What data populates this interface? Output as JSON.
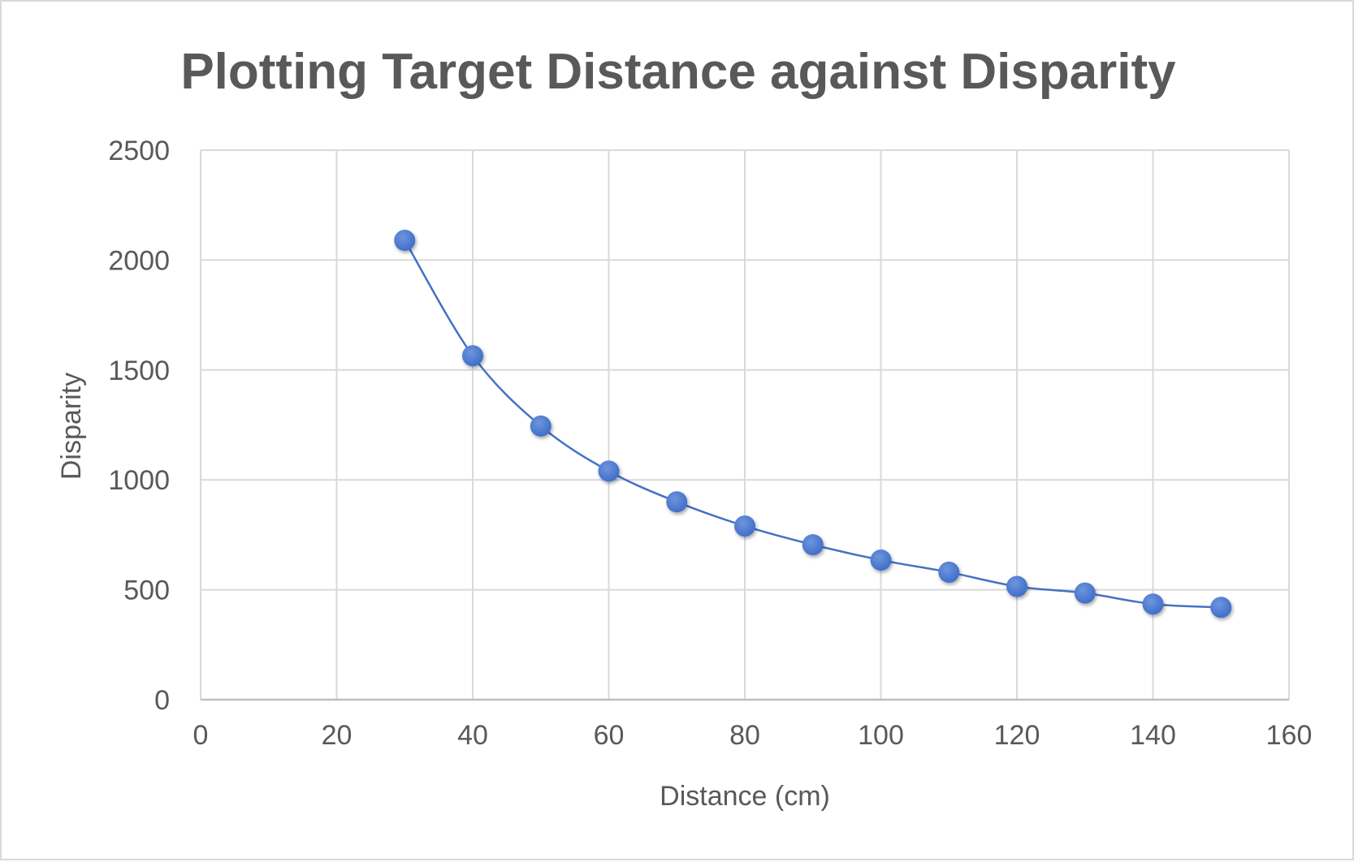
{
  "chart_data": {
    "type": "scatter",
    "title": "Plotting Target Distance against Disparity",
    "xlabel": "Distance (cm)",
    "ylabel": "Disparity",
    "xlim": [
      0,
      160
    ],
    "ylim": [
      0,
      2500
    ],
    "xticks": [
      "0",
      "20",
      "40",
      "60",
      "80",
      "100",
      "120",
      "140",
      "160"
    ],
    "yticks": [
      "0",
      "500",
      "1000",
      "1500",
      "2000",
      "2500"
    ],
    "grid": true,
    "smooth_line": true,
    "colors": {
      "series": "#4472C4",
      "marker": "#3F6FCB",
      "grid": "#d9d9d9",
      "text": "#595959"
    },
    "series": [
      {
        "x": [
          30,
          40,
          50,
          60,
          70,
          80,
          90,
          100,
          110,
          120,
          130,
          140,
          150
        ],
        "y": [
          2090,
          1565,
          1245,
          1040,
          900,
          790,
          705,
          635,
          580,
          515,
          485,
          435,
          420
        ]
      }
    ]
  }
}
